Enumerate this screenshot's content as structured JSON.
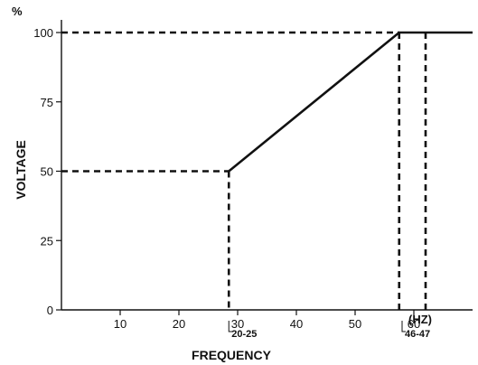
{
  "chart_data": {
    "type": "line",
    "title": "",
    "xlabel": "FREQUENCY",
    "ylabel": "VOLTAGE",
    "y_unit": "%",
    "x_unit": "(HZ)",
    "xlim": [
      0,
      70
    ],
    "ylim": [
      0,
      100
    ],
    "x_ticks": [
      10,
      20,
      30,
      40,
      50,
      60
    ],
    "y_ticks": [
      0,
      25,
      50,
      75,
      100
    ],
    "grid": false,
    "series": [
      {
        "points": [
          [
            28.5,
            50
          ],
          [
            57.5,
            100
          ],
          [
            70,
            100
          ]
        ],
        "style": "solid"
      }
    ],
    "guides": [
      {
        "points": [
          [
            0,
            50
          ],
          [
            28.5,
            50
          ]
        ]
      },
      {
        "points": [
          [
            0,
            100
          ],
          [
            57.5,
            100
          ]
        ]
      },
      {
        "points": [
          [
            28.5,
            50
          ],
          [
            28.5,
            0
          ]
        ]
      },
      {
        "points": [
          [
            57.5,
            100
          ],
          [
            57.5,
            0
          ]
        ]
      },
      {
        "points": [
          [
            62,
            100
          ],
          [
            62,
            0
          ]
        ]
      }
    ],
    "annotations": [
      {
        "text": "20-25",
        "x": 28.5
      },
      {
        "text": "46-47",
        "x": 58
      }
    ]
  }
}
